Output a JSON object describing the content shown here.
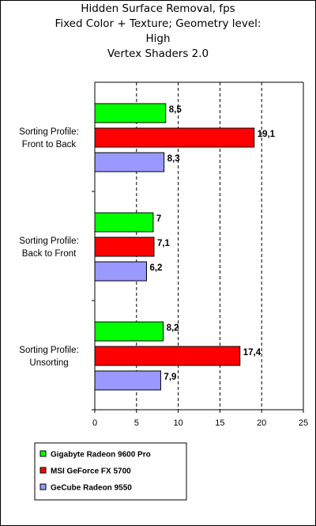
{
  "chart_data": {
    "type": "bar",
    "orientation": "horizontal",
    "title_lines": [
      "Hidden Surface Removal, fps",
      "Fixed Color + Texture; Geometry level:",
      "High",
      "Vertex Shaders 2.0"
    ],
    "categories": [
      [
        "Sorting Profile:",
        "Front to Back"
      ],
      [
        "Sorting Profile:",
        "Back to Front"
      ],
      [
        "Sorting Profile:",
        "Unsorting"
      ]
    ],
    "series": [
      {
        "name": "Gigabyte Radeon 9600 Pro",
        "color": "#00ff00",
        "values": [
          8.5,
          7,
          8.2
        ],
        "labels": [
          "8,5",
          "7",
          "8,2"
        ]
      },
      {
        "name": "MSI GeForce FX 5700",
        "color": "#ff0000",
        "values": [
          19.1,
          7.1,
          17.4
        ],
        "labels": [
          "19,1",
          "7,1",
          "17,4"
        ]
      },
      {
        "name": "GeCube Radeon 9550",
        "color": "#9999ff",
        "values": [
          8.3,
          6.2,
          7.9
        ],
        "labels": [
          "8,3",
          "6,2",
          "7,9"
        ]
      }
    ],
    "xlim": [
      0,
      25
    ],
    "xticks": [
      0,
      5,
      10,
      15,
      20,
      25
    ],
    "xtick_labels": [
      "0",
      "5",
      "10",
      "15",
      "20",
      "25"
    ],
    "grid": "vertical dashed",
    "legend": "bottom-left"
  }
}
